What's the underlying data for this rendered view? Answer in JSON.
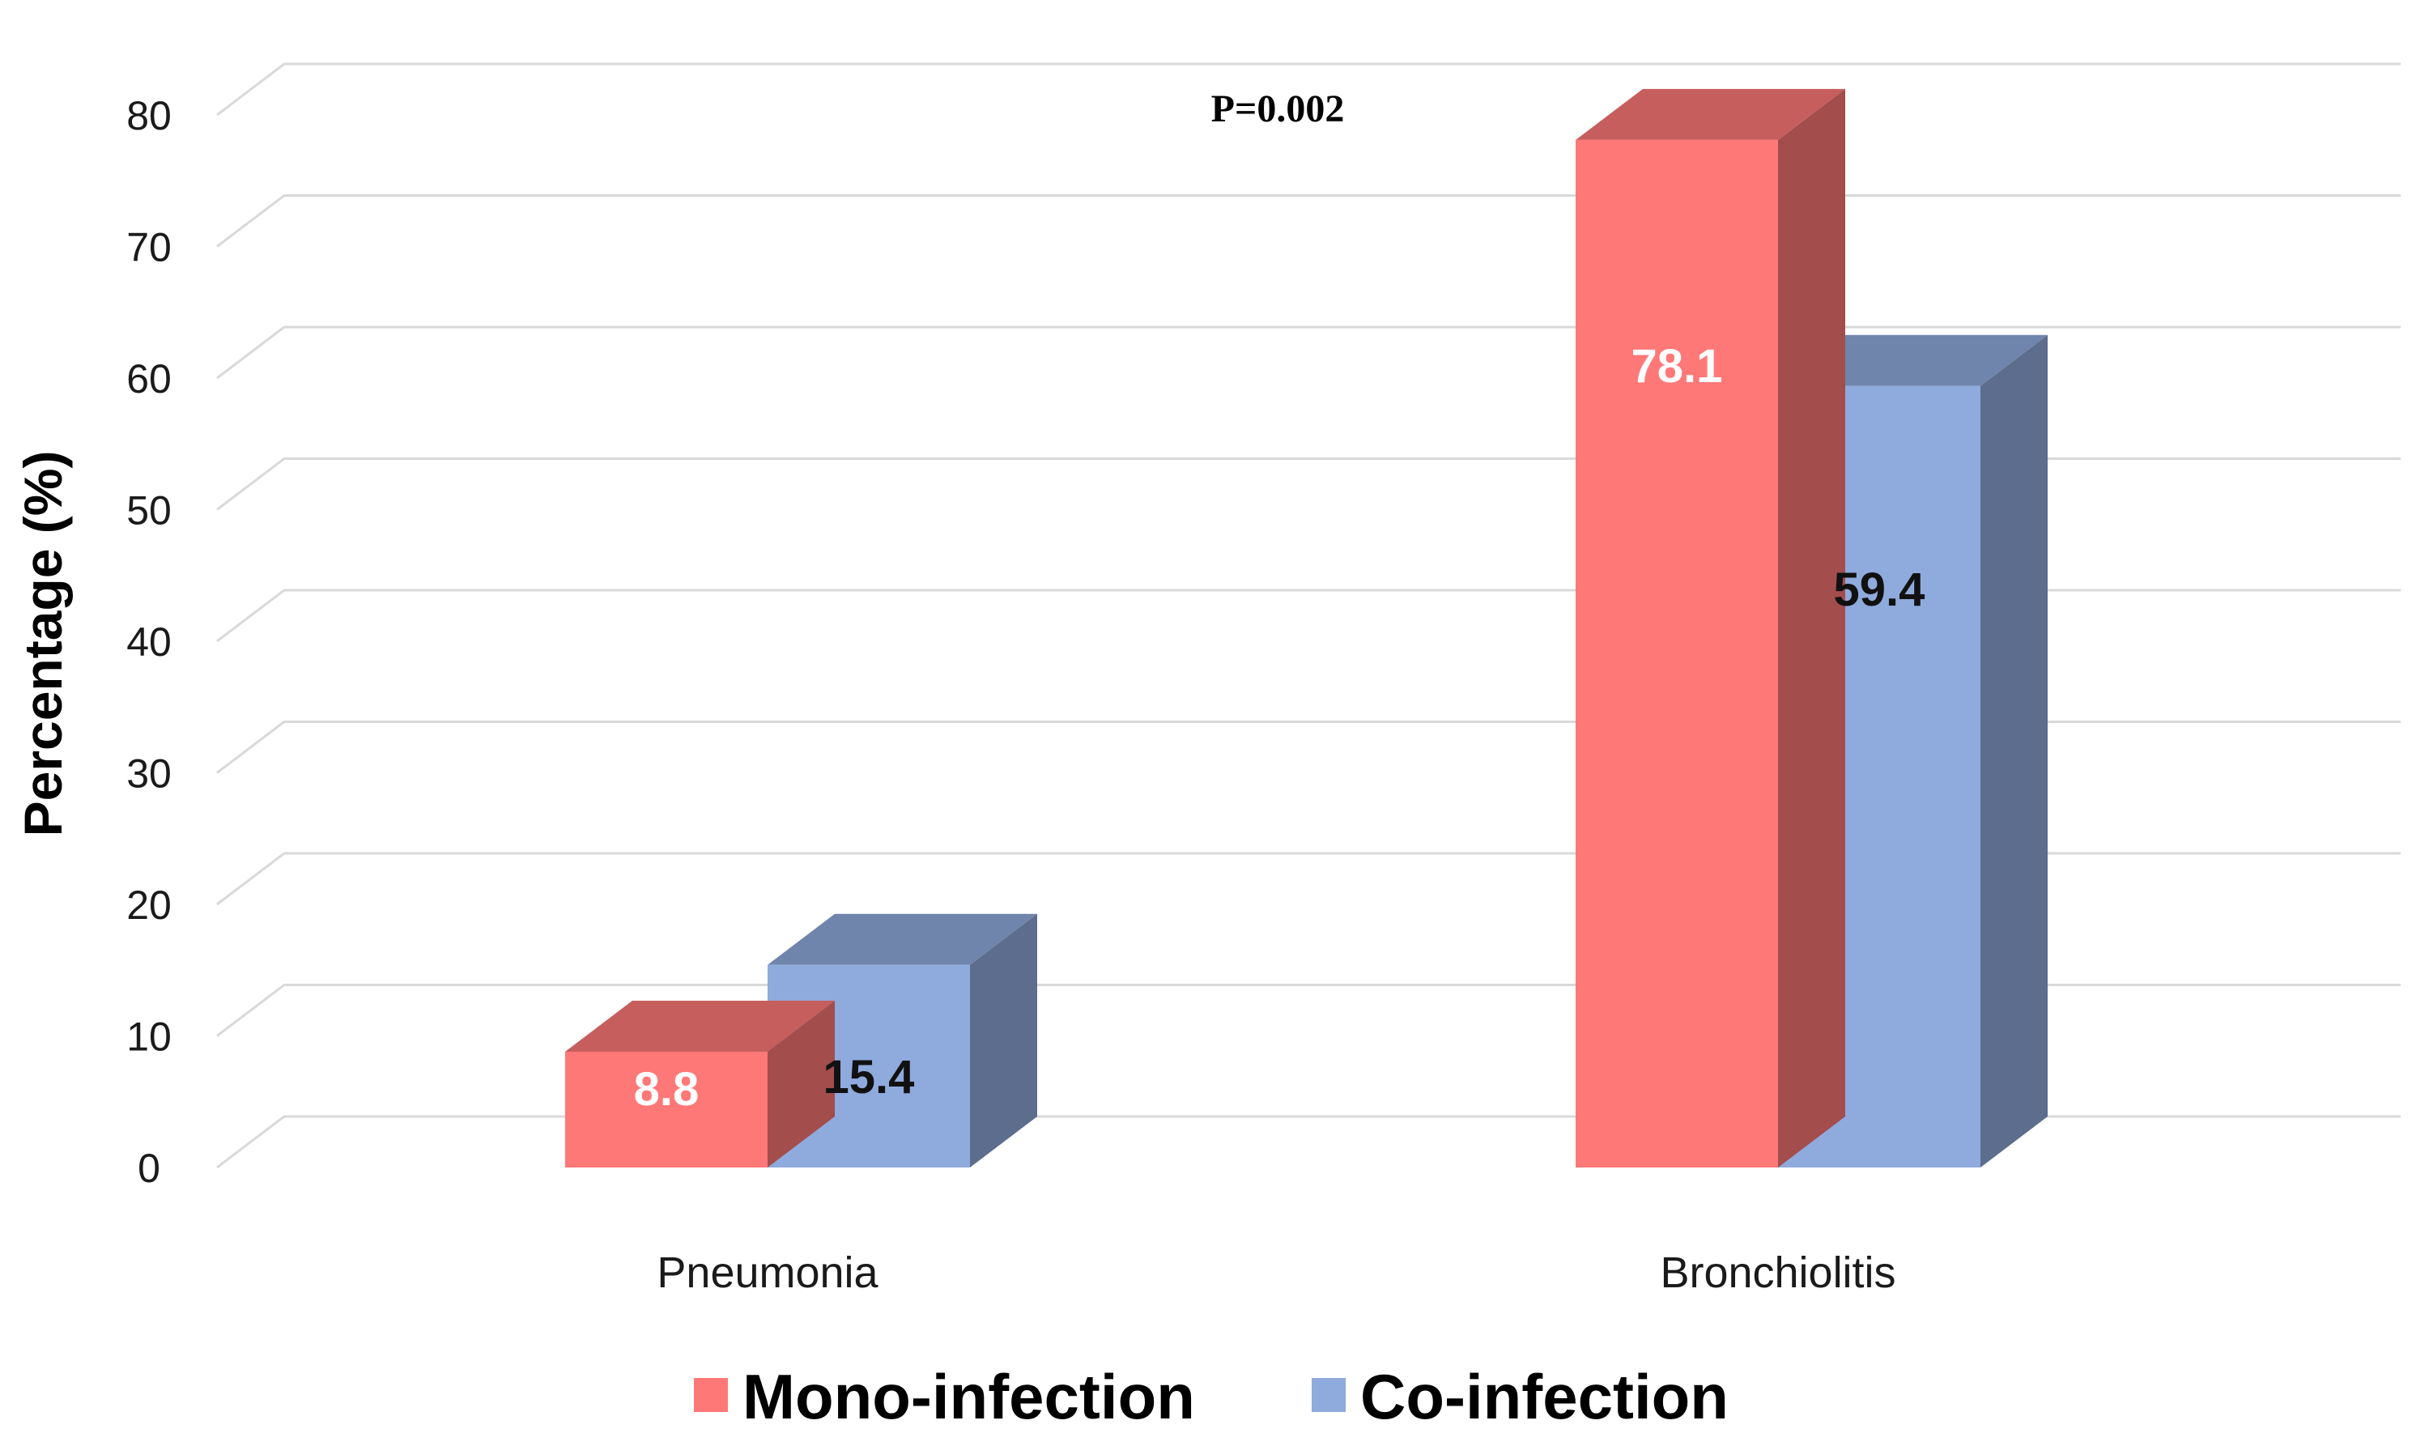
{
  "chart_data": {
    "type": "bar",
    "style": "3d-clustered",
    "categories": [
      "Pneumonia",
      "Bronchiolitis"
    ],
    "series": [
      {
        "name": "Mono-infection",
        "values": [
          8.8,
          78.1
        ],
        "data_labels": [
          "8.8",
          "78.1"
        ],
        "color": "#ff7878",
        "label_color": "#ffffff"
      },
      {
        "name": "Co-infection",
        "values": [
          15.4,
          59.4
        ],
        "data_labels": [
          "15.4",
          "59.4"
        ],
        "color": "#8faadc",
        "label_color": "#111111"
      }
    ],
    "ylabel": "Percentage (%)",
    "xlabel": "",
    "ylim": [
      0,
      80
    ],
    "yticks": [
      0,
      10,
      20,
      30,
      40,
      50,
      60,
      70,
      80
    ],
    "gridlines": true,
    "legend_position": "bottom",
    "annotations": [
      {
        "text": "P=0.002"
      }
    ]
  }
}
